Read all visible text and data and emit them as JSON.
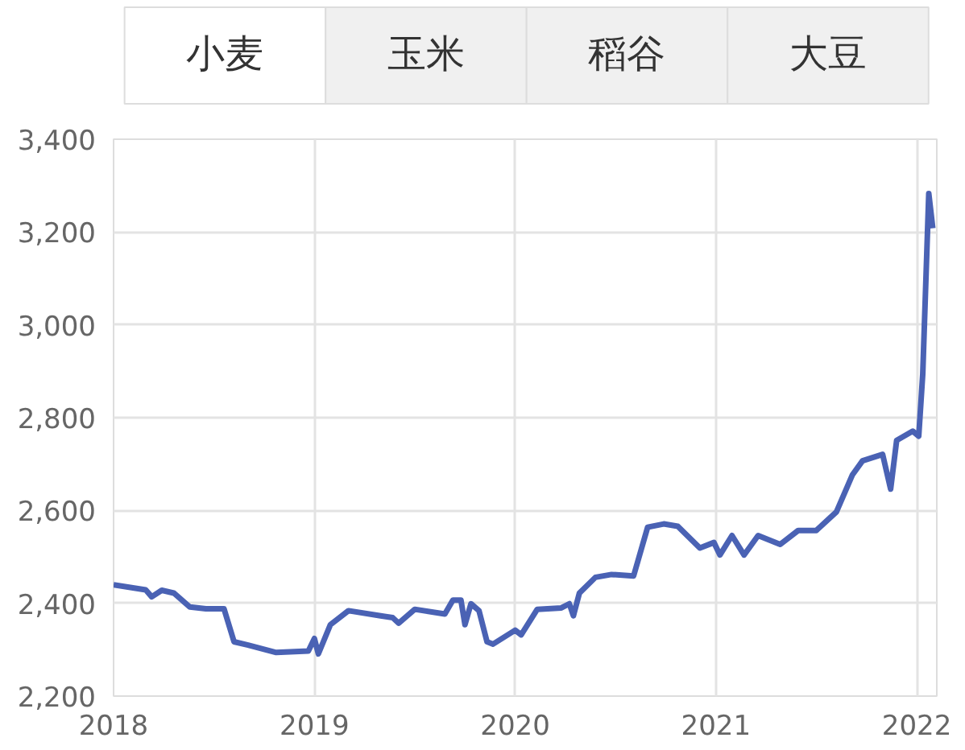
{
  "chart_data": {
    "type": "line",
    "annotations": [
      "小麦",
      "玉米",
      "稻谷",
      "大豆"
    ],
    "x": [
      2018.0,
      2018.16,
      2018.19,
      2018.24,
      2018.3,
      2018.38,
      2018.46,
      2018.55,
      2018.6,
      2018.67,
      2018.81,
      2018.97,
      2019.0,
      2019.02,
      2019.08,
      2019.17,
      2019.33,
      2019.39,
      2019.42,
      2019.5,
      2019.65,
      2019.69,
      2019.73,
      2019.75,
      2019.78,
      2019.82,
      2019.86,
      2019.89,
      2020.0,
      2020.03,
      2020.11,
      2020.23,
      2020.27,
      2020.29,
      2020.32,
      2020.4,
      2020.48,
      2020.59,
      2020.66,
      2020.74,
      2020.81,
      2020.92,
      2020.99,
      2021.02,
      2021.08,
      2021.14,
      2021.21,
      2021.32,
      2021.41,
      2021.5,
      2021.6,
      2021.68,
      2021.73,
      2021.83,
      2021.87,
      2021.9,
      2021.98,
      2022.01,
      2022.03,
      2022.06,
      2022.08
    ],
    "series": [
      {
        "color": "#4a62b4",
        "values": [
          2440,
          2429,
          2414,
          2428,
          2422,
          2392,
          2388,
          2388,
          2317,
          2310,
          2294,
          2297,
          2324,
          2291,
          2354,
          2384,
          2373,
          2369,
          2357,
          2387,
          2377,
          2407,
          2407,
          2354,
          2399,
          2384,
          2317,
          2312,
          2342,
          2332,
          2387,
          2390,
          2399,
          2373,
          2422,
          2456,
          2462,
          2459,
          2564,
          2571,
          2566,
          2519,
          2531,
          2504,
          2546,
          2504,
          2546,
          2527,
          2557,
          2557,
          2597,
          2677,
          2707,
          2721,
          2646,
          2751,
          2771,
          2760,
          2894,
          3283,
          3208
        ]
      }
    ],
    "xlim": [
      2018,
      2022.1
    ],
    "xticks": [
      2018,
      2019,
      2020,
      2021,
      2022
    ],
    "ylim": [
      2200,
      3400
    ],
    "yticks": [
      {
        "value": 2200,
        "label": "2,200"
      },
      {
        "value": 2400,
        "label": "2,400"
      },
      {
        "value": 2600,
        "label": "2,600"
      },
      {
        "value": 2800,
        "label": "2,800"
      },
      {
        "value": 3000,
        "label": "3,000"
      },
      {
        "value": 3200,
        "label": "3,200"
      },
      {
        "value": 3400,
        "label": "3,400"
      }
    ],
    "grid": true,
    "marker": "none",
    "line_style": "solid"
  }
}
